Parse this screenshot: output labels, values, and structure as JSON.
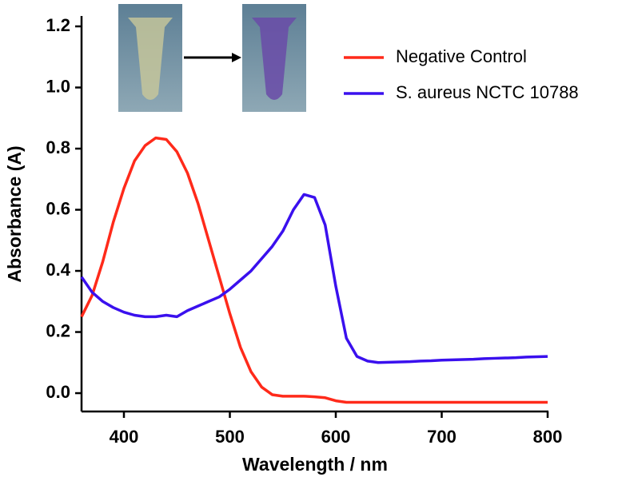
{
  "chart_data": {
    "type": "line",
    "x_label": "Wavelength / nm",
    "y_label": "Absorbance (A)",
    "x": [
      360,
      370,
      380,
      390,
      400,
      410,
      420,
      430,
      440,
      450,
      460,
      470,
      480,
      490,
      500,
      510,
      520,
      530,
      540,
      550,
      560,
      570,
      580,
      590,
      600,
      610,
      620,
      630,
      640,
      650,
      660,
      670,
      680,
      690,
      700,
      710,
      720,
      730,
      740,
      750,
      760,
      770,
      780,
      790,
      800
    ],
    "series": [
      {
        "name": "Negative Control",
        "color": "#ff2a1a",
        "values": [
          0.25,
          0.32,
          0.43,
          0.56,
          0.67,
          0.76,
          0.81,
          0.835,
          0.83,
          0.79,
          0.72,
          0.62,
          0.5,
          0.38,
          0.26,
          0.15,
          0.07,
          0.02,
          -0.005,
          -0.01,
          -0.01,
          -0.01,
          -0.012,
          -0.015,
          -0.025,
          -0.03,
          -0.03,
          -0.03,
          -0.03,
          -0.03,
          -0.03,
          -0.03,
          -0.03,
          -0.03,
          -0.03,
          -0.03,
          -0.03,
          -0.03,
          -0.03,
          -0.03,
          -0.03,
          -0.03,
          -0.03,
          -0.03,
          -0.03
        ]
      },
      {
        "name": "S. aureus NCTC 10788",
        "color": "#3a10ee",
        "values": [
          0.38,
          0.33,
          0.3,
          0.28,
          0.265,
          0.255,
          0.25,
          0.25,
          0.255,
          0.25,
          0.27,
          0.285,
          0.3,
          0.315,
          0.34,
          0.37,
          0.4,
          0.44,
          0.48,
          0.53,
          0.6,
          0.65,
          0.64,
          0.55,
          0.35,
          0.18,
          0.12,
          0.105,
          0.1,
          0.101,
          0.102,
          0.103,
          0.105,
          0.106,
          0.108,
          0.109,
          0.11,
          0.111,
          0.113,
          0.114,
          0.115,
          0.116,
          0.118,
          0.119,
          0.12
        ]
      }
    ],
    "xlim": [
      360,
      800
    ],
    "xticks": [
      400,
      500,
      600,
      700,
      800
    ],
    "ylim": [
      -0.06,
      1.2
    ],
    "yticks": [
      {
        "value": 0,
        "label": "0.0"
      },
      0.2,
      0.4,
      0.6,
      0.8,
      {
        "value": 1,
        "label": "1.0"
      },
      1.2
    ],
    "grid": false
  }
}
